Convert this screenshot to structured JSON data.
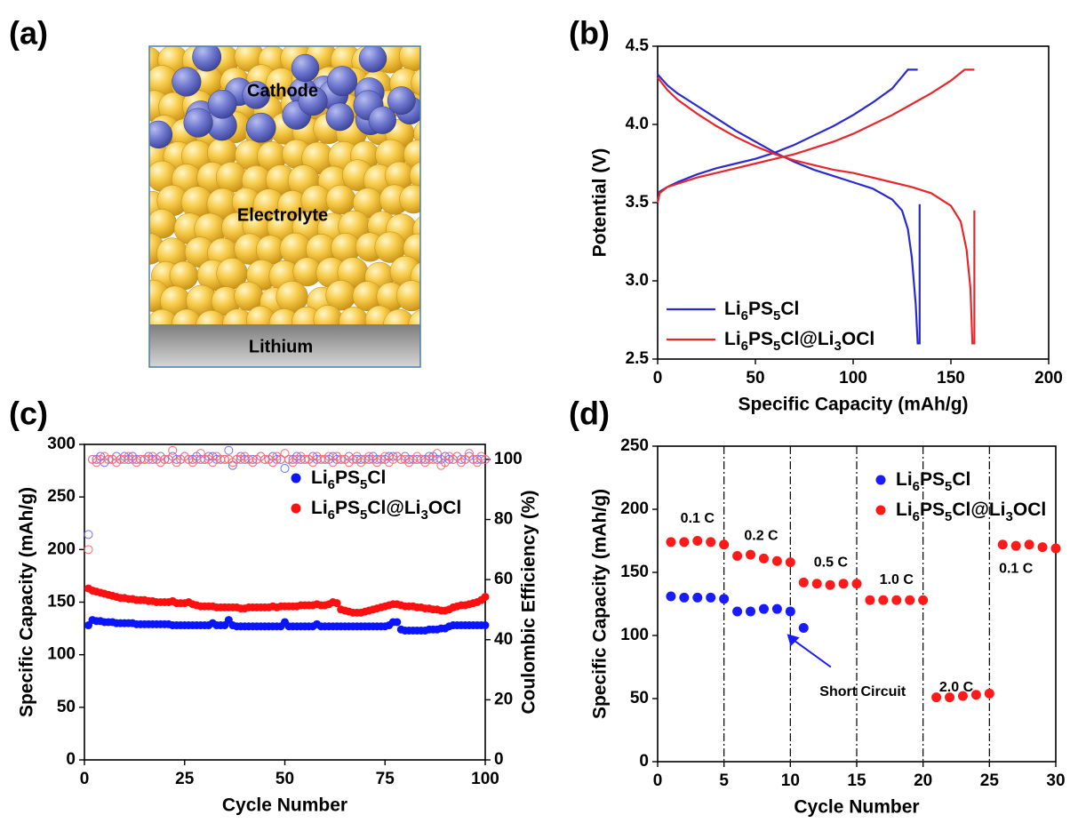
{
  "diagram": {
    "label": "(a)",
    "cathode": "Cathode",
    "electrolyte": "Electrolyte",
    "lithium": "Lithium"
  },
  "chart_data": [
    {
      "label": "(b)",
      "type": "line",
      "xlabel": "Specific Capacity (mAh/g)",
      "ylabel": "Potential (V)",
      "xlim": [
        0,
        200
      ],
      "xticks": [
        0,
        50,
        100,
        150,
        200
      ],
      "ylim": [
        2.5,
        4.5
      ],
      "yticks": [
        2.5,
        {
          "value": 3,
          "label": "3.0"
        },
        3.5,
        {
          "value": 4,
          "label": "4.0"
        },
        4.5
      ],
      "legend": "lower left",
      "series": [
        {
          "name": "Li6PS5Cl",
          "color": "#2a2ad0",
          "x": [
            0,
            1,
            5,
            10,
            20,
            30,
            40,
            50,
            60,
            70,
            80,
            90,
            100,
            110,
            120,
            128,
            133,
            null,
            0,
            5,
            10,
            20,
            30,
            40,
            50,
            60,
            70,
            80,
            90,
            100,
            110,
            120,
            125,
            128,
            130,
            132,
            133,
            134,
            134
          ],
          "values": [
            3.5,
            3.57,
            3.6,
            3.63,
            3.68,
            3.72,
            3.75,
            3.78,
            3.82,
            3.87,
            3.93,
            3.99,
            4.06,
            4.14,
            4.23,
            4.35,
            4.35,
            null,
            4.32,
            4.25,
            4.2,
            4.12,
            4.04,
            3.96,
            3.89,
            3.82,
            3.76,
            3.71,
            3.67,
            3.63,
            3.59,
            3.52,
            3.45,
            3.33,
            3.15,
            2.85,
            2.6,
            2.6,
            3.49
          ]
        },
        {
          "name": "Li6PS5Cl@Li3OCl",
          "color": "#e8262a",
          "x": [
            0,
            1,
            5,
            10,
            20,
            30,
            40,
            50,
            60,
            70,
            80,
            90,
            100,
            110,
            120,
            130,
            140,
            150,
            157,
            162,
            null,
            0,
            5,
            10,
            20,
            30,
            40,
            50,
            60,
            70,
            80,
            90,
            100,
            110,
            120,
            130,
            140,
            150,
            155,
            158,
            160,
            161,
            162,
            162
          ],
          "values": [
            3.5,
            3.56,
            3.6,
            3.62,
            3.66,
            3.69,
            3.72,
            3.75,
            3.78,
            3.81,
            3.85,
            3.89,
            3.94,
            4.0,
            4.06,
            4.13,
            4.2,
            4.28,
            4.35,
            4.35,
            null,
            4.3,
            4.22,
            4.16,
            4.07,
            3.99,
            3.92,
            3.86,
            3.81,
            3.77,
            3.74,
            3.71,
            3.69,
            3.66,
            3.63,
            3.6,
            3.56,
            3.48,
            3.38,
            3.2,
            2.95,
            2.6,
            2.6,
            3.45
          ]
        }
      ]
    },
    {
      "label": "(c)",
      "type": "scatter",
      "xlabel": "Cycle Number",
      "ylabel": "Specific Capacity (mAh/g)",
      "y2label": "Coulombic Efficiency (%)",
      "xlim": [
        0,
        100
      ],
      "xticks": [
        0,
        25,
        50,
        75,
        100
      ],
      "ylim": [
        0,
        300
      ],
      "yticks": [
        0,
        50,
        100,
        150,
        200,
        250,
        300
      ],
      "y2lim": [
        0,
        105
      ],
      "y2ticks": [
        0,
        20,
        40,
        60,
        80,
        100
      ],
      "legend": "upper center",
      "x": [
        1,
        2,
        3,
        4,
        5,
        6,
        7,
        8,
        9,
        10,
        11,
        12,
        13,
        14,
        15,
        16,
        17,
        18,
        19,
        20,
        21,
        22,
        23,
        24,
        25,
        26,
        27,
        28,
        29,
        30,
        31,
        32,
        33,
        34,
        35,
        36,
        37,
        38,
        39,
        40,
        41,
        42,
        43,
        44,
        45,
        46,
        47,
        48,
        49,
        50,
        51,
        52,
        53,
        54,
        55,
        56,
        57,
        58,
        59,
        60,
        61,
        62,
        63,
        64,
        65,
        66,
        67,
        68,
        69,
        70,
        71,
        72,
        73,
        74,
        75,
        76,
        77,
        78,
        79,
        80,
        81,
        82,
        83,
        84,
        85,
        86,
        87,
        88,
        89,
        90,
        91,
        92,
        93,
        94,
        95,
        96,
        97,
        98,
        99,
        100
      ],
      "series": [
        {
          "name": "Li6PS5Cl",
          "color": "#0a14ff",
          "marker": "filled",
          "values": [
            128,
            133,
            132,
            132,
            131,
            131,
            131,
            130,
            130,
            130,
            130,
            130,
            129,
            129,
            129,
            129,
            129,
            129,
            129,
            129,
            129,
            128,
            128,
            128,
            128,
            128,
            128,
            128,
            128,
            128,
            128,
            130,
            128,
            128,
            128,
            133,
            128,
            127,
            127,
            127,
            127,
            127,
            127,
            127,
            127,
            127,
            127,
            127,
            127,
            131,
            127,
            127,
            127,
            127,
            127,
            127,
            127,
            129,
            127,
            127,
            127,
            127,
            127,
            127,
            127,
            127,
            127,
            127,
            127,
            127,
            127,
            127,
            127,
            127,
            127,
            128,
            131,
            131,
            124,
            123,
            123,
            123,
            123,
            123,
            123,
            124,
            124,
            124,
            125,
            125,
            127,
            128,
            128,
            128,
            128,
            128,
            128,
            128,
            128,
            128
          ]
        },
        {
          "name": "Li6PS5Cl@Li3OCl",
          "color": "#ff1010",
          "marker": "filled",
          "values": [
            163,
            161,
            160,
            159,
            158,
            157,
            156,
            155,
            154,
            154,
            153,
            153,
            152,
            152,
            152,
            151,
            151,
            150,
            150,
            150,
            150,
            151,
            149,
            149,
            149,
            150,
            148,
            147,
            146,
            146,
            146,
            146,
            145,
            145,
            145,
            145,
            145,
            145,
            144,
            144,
            145,
            145,
            145,
            145,
            145,
            145,
            146,
            145,
            146,
            146,
            146,
            146,
            146,
            147,
            147,
            147,
            147,
            148,
            147,
            147,
            148,
            150,
            149,
            143,
            142,
            141,
            140,
            140,
            140,
            141,
            142,
            143,
            144,
            145,
            146,
            147,
            148,
            148,
            147,
            146,
            146,
            146,
            145,
            145,
            144,
            144,
            143,
            143,
            142,
            142,
            143,
            145,
            146,
            147,
            147,
            148,
            149,
            150,
            152,
            155
          ]
        },
        {
          "color": "#7070ff",
          "marker": "open",
          "axis": "y2",
          "values": [
            75,
            100,
            100,
            101,
            99,
            100,
            100,
            101,
            100,
            101,
            100,
            101,
            100,
            100,
            100,
            101,
            100,
            100,
            101,
            100,
            100,
            101,
            100,
            100,
            101,
            100,
            100,
            101,
            100,
            100,
            101,
            101,
            100,
            100,
            100,
            103,
            98,
            100,
            101,
            100,
            100,
            100,
            100,
            101,
            100,
            100,
            101,
            100,
            100,
            97,
            100,
            100,
            101,
            100,
            100,
            100,
            101,
            100,
            100,
            100,
            100,
            101,
            100,
            100,
            100,
            101,
            100,
            100,
            100,
            100,
            100,
            101,
            100,
            100,
            100,
            101,
            101,
            101,
            100,
            101,
            100,
            100,
            100,
            100,
            100,
            101,
            101,
            100,
            100,
            101,
            100,
            100,
            101,
            100,
            100,
            101,
            100,
            100,
            100,
            100
          ]
        },
        {
          "color": "#ff6a6a",
          "marker": "open",
          "axis": "y2",
          "values": [
            70,
            100,
            99,
            100,
            101,
            100,
            100,
            99,
            100,
            100,
            101,
            100,
            99,
            100,
            100,
            100,
            101,
            100,
            99,
            100,
            100,
            103,
            99,
            100,
            101,
            100,
            99,
            100,
            102,
            100,
            100,
            99,
            101,
            100,
            100,
            100,
            99,
            100,
            100,
            101,
            100,
            99,
            100,
            101,
            100,
            100,
            99,
            101,
            100,
            102,
            100,
            99,
            100,
            101,
            100,
            100,
            99,
            101,
            100,
            100,
            101,
            99,
            101,
            100,
            100,
            99,
            100,
            101,
            99,
            100,
            101,
            100,
            99,
            100,
            101,
            99,
            100,
            101,
            100,
            100,
            99,
            100,
            101,
            100,
            99,
            100,
            100,
            102,
            98,
            99,
            101,
            100,
            101,
            99,
            100,
            102,
            100,
            99,
            101,
            100
          ]
        }
      ]
    },
    {
      "label": "(d)",
      "type": "scatter",
      "xlabel": "Cycle Number",
      "ylabel": "Specific Capacity (mAh/g)",
      "xlim": [
        0,
        30
      ],
      "xticks": [
        0,
        5,
        10,
        15,
        20,
        25,
        30
      ],
      "ylim": [
        0,
        250
      ],
      "yticks": [
        0,
        50,
        100,
        150,
        200,
        250
      ],
      "vlines": [
        5,
        10,
        15,
        20,
        25
      ],
      "legend": "upper right",
      "annotations": [
        "0.1 C",
        "0.2 C",
        "0.5 C",
        "1.0 C",
        "2.0 C",
        "0.1 C",
        "Short Circuit"
      ],
      "x": [
        1,
        2,
        3,
        4,
        5,
        6,
        7,
        8,
        9,
        10,
        11,
        12,
        13,
        14,
        15,
        16,
        17,
        18,
        19,
        20,
        21,
        22,
        23,
        24,
        25,
        26,
        27,
        28,
        29,
        30
      ],
      "series": [
        {
          "name": "Li6PS5Cl",
          "color": "#1a1aff",
          "marker": "filled",
          "values": [
            131,
            130,
            130,
            130,
            129,
            119,
            119,
            121,
            121,
            119,
            106,
            null,
            null,
            null,
            null,
            null,
            null,
            null,
            null,
            null,
            null,
            null,
            null,
            null,
            null,
            null,
            null,
            null,
            null,
            null
          ]
        },
        {
          "name": "Li6PS5Cl@Li3OCl",
          "color": "#ff1a1a",
          "marker": "filled",
          "values": [
            174,
            174,
            175,
            174,
            172,
            163,
            164,
            161,
            159,
            158,
            142,
            141,
            140,
            141,
            141,
            128,
            128,
            128,
            128,
            128,
            51,
            51,
            52,
            53,
            54,
            172,
            171,
            172,
            170,
            169
          ]
        }
      ]
    }
  ]
}
